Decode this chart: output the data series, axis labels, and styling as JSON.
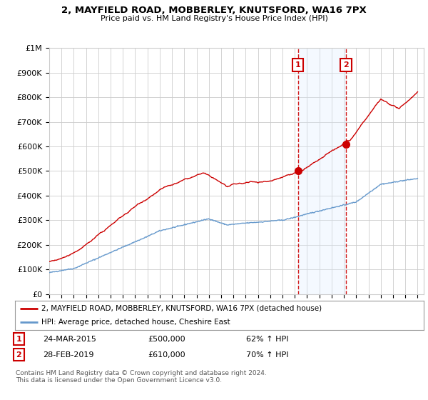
{
  "title": "2, MAYFIELD ROAD, MOBBERLEY, KNUTSFORD, WA16 7PX",
  "subtitle": "Price paid vs. HM Land Registry's House Price Index (HPI)",
  "ylabel_ticks": [
    "£0",
    "£100K",
    "£200K",
    "£300K",
    "£400K",
    "£500K",
    "£600K",
    "£700K",
    "£800K",
    "£900K",
    "£1M"
  ],
  "ytick_vals": [
    0,
    100000,
    200000,
    300000,
    400000,
    500000,
    600000,
    700000,
    800000,
    900000,
    1000000
  ],
  "ylim": [
    0,
    1000000
  ],
  "legend_line1": "2, MAYFIELD ROAD, MOBBERLEY, KNUTSFORD, WA16 7PX (detached house)",
  "legend_line2": "HPI: Average price, detached house, Cheshire East",
  "transaction1_date": "24-MAR-2015",
  "transaction1_price": "£500,000",
  "transaction1_hpi": "62% ↑ HPI",
  "transaction2_date": "28-FEB-2019",
  "transaction2_price": "£610,000",
  "transaction2_hpi": "70% ↑ HPI",
  "footnote": "Contains HM Land Registry data © Crown copyright and database right 2024.\nThis data is licensed under the Open Government Licence v3.0.",
  "red_color": "#cc0000",
  "blue_color": "#6699cc",
  "highlight_fill": "#ddeeff",
  "vline_color": "#cc0000",
  "marker1_x": 2015.25,
  "marker1_y": 500000,
  "marker2_x": 2019.17,
  "marker2_y": 610000,
  "xmin": 1995,
  "xmax": 2025.5,
  "background_color": "#ffffff",
  "grid_color": "#cccccc"
}
